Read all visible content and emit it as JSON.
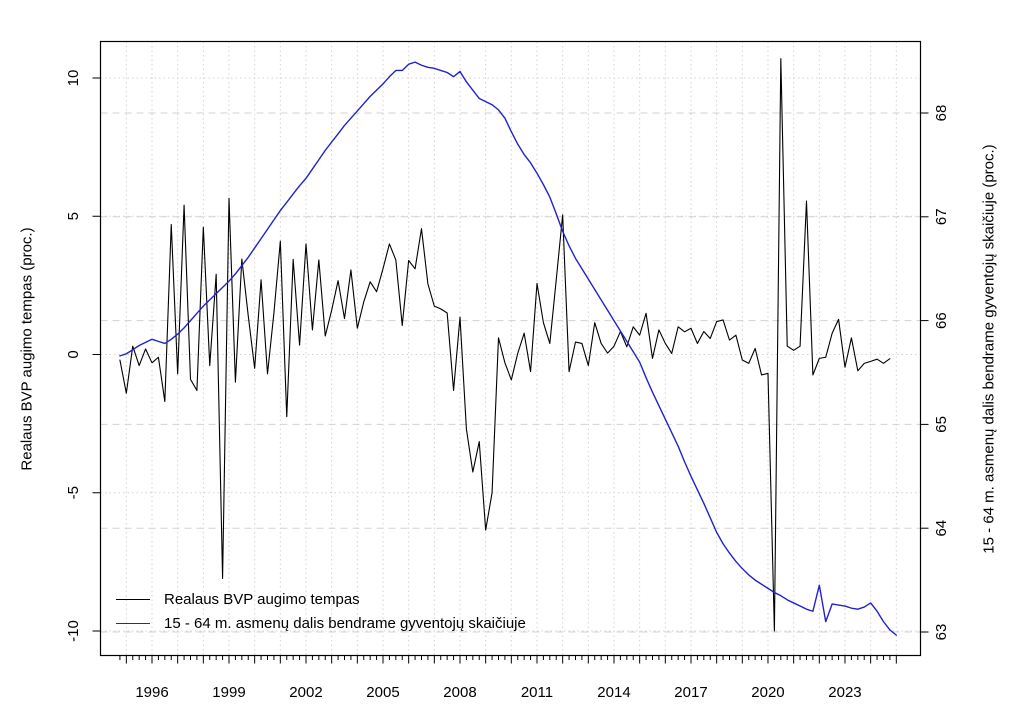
{
  "figure": {
    "background": "#ffffff",
    "plot_border_color": "#000000",
    "grid_color": "#d3d3d3"
  },
  "chart_data": {
    "type": "line",
    "title": "",
    "x_start": 1994.75,
    "x_step": 0.25,
    "x_tick_quarterly": true,
    "x_tick_range": [
      1994.75,
      2025.0
    ],
    "x_labeled_years": [
      "1996",
      "1999",
      "2002",
      "2005",
      "2008",
      "2011",
      "2014",
      "2017",
      "2020",
      "2023"
    ],
    "grid": {
      "vertical_years": [
        1995,
        2025
      ],
      "vertical_style": "dotted",
      "horizontal_left_style": "dotted",
      "horizontal_right_style": "dashed"
    },
    "left_axis": {
      "label": "Realaus BVP augimo tempas (proc.)",
      "ticks": [
        "-10",
        "-5",
        "0",
        "5",
        "10"
      ],
      "tick_values": [
        -10,
        -5,
        0,
        5,
        10
      ],
      "range": [
        -10.9,
        11.3
      ]
    },
    "right_axis": {
      "label": "15 - 64 m. asmenų dalis bendrame gyventojų skaičiuje (proc.)",
      "ticks": [
        "63",
        "64",
        "65",
        "66",
        "67",
        "68"
      ],
      "tick_values": [
        63,
        64,
        65,
        66,
        67,
        68
      ],
      "range": [
        62.78,
        68.69
      ]
    },
    "legend": {
      "position": "bottom-left",
      "entries": [
        {
          "label": "Realaus BVP augimo tempas",
          "color": "#000000"
        },
        {
          "label": "15 - 64 m. asmenų dalis bendrame gyventojų skaičiuje",
          "color": "#2222cc"
        }
      ]
    },
    "series": [
      {
        "name": "Realaus BVP augimo tempas",
        "axis": "left",
        "color": "#000000",
        "width": 1.1,
        "values": [
          -0.2,
          -1.4,
          0.3,
          -0.4,
          0.2,
          -0.3,
          -0.1,
          -1.7,
          4.7,
          -0.7,
          5.4,
          -0.9,
          -1.3,
          4.6,
          -0.4,
          2.9,
          -8.1,
          5.65,
          -1.0,
          3.45,
          1.4,
          -0.5,
          2.7,
          -0.7,
          1.5,
          4.1,
          -2.25,
          3.44,
          0.34,
          4.0,
          0.89,
          3.42,
          0.67,
          1.6,
          2.67,
          1.3,
          3.06,
          0.95,
          1.9,
          2.63,
          2.27,
          3.1,
          4.0,
          3.42,
          1.05,
          3.4,
          3.1,
          4.55,
          2.55,
          1.75,
          1.65,
          1.5,
          -1.3,
          1.35,
          -2.7,
          -4.25,
          -3.15,
          -6.35,
          -5.0,
          0.6,
          -0.3,
          -0.92,
          0.04,
          0.77,
          -0.62,
          2.57,
          1.15,
          0.4,
          2.7,
          5.05,
          -0.62,
          0.45,
          0.4,
          -0.4,
          1.15,
          0.4,
          0.05,
          0.3,
          0.83,
          0.28,
          1.0,
          0.7,
          1.49,
          -0.14,
          0.89,
          0.4,
          0.04,
          1.0,
          0.82,
          0.95,
          0.4,
          0.83,
          0.58,
          1.19,
          1.25,
          0.52,
          0.7,
          -0.2,
          -0.32,
          0.22,
          -0.74,
          -0.68,
          -10.0,
          10.7,
          0.3,
          0.15,
          0.3,
          5.55,
          -0.74,
          -0.14,
          -0.1,
          0.77,
          1.27,
          -0.46,
          0.6,
          -0.59,
          -0.32,
          -0.25,
          -0.17,
          -0.32,
          -0.15
        ]
      },
      {
        "name": "15 - 64 m. asmenų dalis bendrame gyventojų skaičiuje",
        "axis": "right",
        "color": "#2222cc",
        "width": 1.4,
        "values": [
          65.66,
          65.68,
          65.72,
          65.76,
          65.79,
          65.82,
          65.8,
          65.78,
          65.82,
          65.87,
          65.93,
          66.0,
          66.07,
          66.14,
          66.2,
          66.26,
          66.32,
          66.38,
          66.45,
          66.53,
          66.61,
          66.7,
          66.79,
          66.88,
          66.97,
          67.06,
          67.14,
          67.22,
          67.3,
          67.37,
          67.46,
          67.55,
          67.64,
          67.72,
          67.8,
          67.88,
          67.95,
          68.02,
          68.09,
          68.16,
          68.22,
          68.28,
          68.35,
          68.41,
          68.41,
          68.47,
          68.49,
          68.46,
          68.44,
          68.43,
          68.41,
          68.39,
          68.35,
          68.4,
          68.3,
          68.22,
          68.14,
          68.11,
          68.08,
          68.03,
          67.95,
          67.82,
          67.7,
          67.6,
          67.52,
          67.42,
          67.31,
          67.19,
          67.03,
          66.86,
          66.72,
          66.6,
          66.5,
          66.4,
          66.3,
          66.2,
          66.1,
          66.0,
          65.9,
          65.8,
          65.7,
          65.6,
          65.45,
          65.31,
          65.18,
          65.05,
          64.92,
          64.79,
          64.64,
          64.5,
          64.37,
          64.24,
          64.1,
          63.96,
          63.85,
          63.76,
          63.68,
          63.61,
          63.55,
          63.5,
          63.46,
          63.42,
          63.38,
          63.35,
          63.31,
          63.28,
          63.25,
          63.22,
          63.2,
          63.45,
          63.1,
          63.27,
          63.26,
          63.25,
          63.23,
          63.22,
          63.24,
          63.28,
          63.2,
          63.1,
          63.02,
          62.97
        ]
      }
    ]
  }
}
